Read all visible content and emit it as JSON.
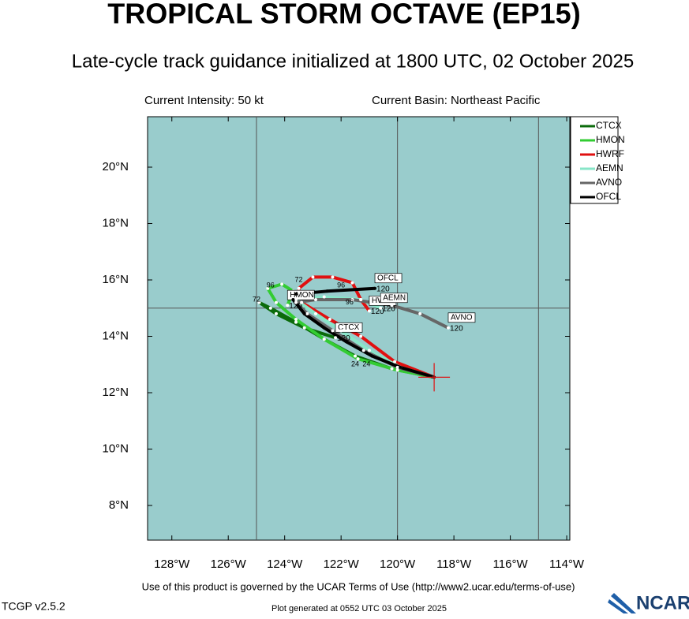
{
  "chart_data": {
    "type": "track",
    "title": "TROPICAL STORM OCTAVE (EP15)",
    "subtitle": "Late-cycle track guidance initialized at 1800 UTC, 02 October 2025",
    "left_note": "Current Intensity: 50 kt",
    "right_note": "Current Basin: Northeast Pacific",
    "footer": "Use of this product is governed by the UCAR Terms of Use (http://www2.ucar.edu/terms-of-use)",
    "version": "TCGP v2.5.2",
    "generated": "Plot generated at 0552 UTC   03 October 2025",
    "logo": "NCAR",
    "background": "#99cccc",
    "xlim": [
      -128.86,
      -113.89
    ],
    "ylim": [
      6.77,
      21.79
    ],
    "xticks": [
      {
        "value": -128,
        "label": "128°W"
      },
      {
        "value": -126,
        "label": "126°W"
      },
      {
        "value": -124,
        "label": "124°W"
      },
      {
        "value": -122,
        "label": "122°W"
      },
      {
        "value": -120,
        "label": "120°W"
      },
      {
        "value": -118,
        "label": "118°W"
      },
      {
        "value": -116,
        "label": "116°W"
      },
      {
        "value": -114,
        "label": "114°W"
      }
    ],
    "yticks": [
      {
        "value": 8,
        "label": "8°N"
      },
      {
        "value": 10,
        "label": "10°N"
      },
      {
        "value": 12,
        "label": "12°N"
      },
      {
        "value": 14,
        "label": "14°N"
      },
      {
        "value": 16,
        "label": "16°N"
      },
      {
        "value": 18,
        "label": "18°N"
      },
      {
        "value": 20,
        "label": "20°N"
      }
    ],
    "xgrid": [
      -125,
      -120,
      -115
    ],
    "ygrid": [
      15
    ],
    "series": [
      {
        "name": "CTCX",
        "color": "#0b6b0b",
        "end_label": "120",
        "x": [
          -118.7,
          -120.2,
          -121.5,
          -122.6,
          -123.6,
          -124.5,
          -124.9,
          -124.3,
          -123.3,
          -122.2
        ],
        "values": [
          12.55,
          12.85,
          13.3,
          13.9,
          14.5,
          15.0,
          15.2,
          14.8,
          14.3,
          13.95
        ]
      },
      {
        "name": "HMON",
        "color": "#33cc33",
        "end_label": "120",
        "x": [
          -118.7,
          -120.0,
          -121.4,
          -122.6,
          -123.6,
          -124.3,
          -124.6,
          -124.1,
          -123.7,
          -123.9
        ],
        "values": [
          12.55,
          12.8,
          13.2,
          13.9,
          14.6,
          15.2,
          15.7,
          15.85,
          15.6,
          15.1
        ]
      },
      {
        "name": "HWRF",
        "color": "#e01010",
        "end_label": "120",
        "x": [
          -118.7,
          -120.1,
          -121.3,
          -122.4,
          -123.4,
          -123.5,
          -123.0,
          -122.3,
          -121.6,
          -121.3,
          -121.0
        ],
        "values": [
          12.55,
          13.1,
          14.0,
          14.6,
          15.2,
          15.7,
          16.1,
          16.1,
          15.9,
          15.3,
          14.9
        ]
      },
      {
        "name": "AEMN",
        "color": "#88e6c8",
        "end_label": "120",
        "x": [
          -118.7,
          -119.9,
          -121.0,
          -122.0,
          -122.9,
          -123.6,
          -122.6,
          -121.3,
          -120.6
        ],
        "values": [
          12.55,
          12.9,
          13.5,
          14.2,
          14.8,
          15.3,
          15.4,
          15.3,
          15.0
        ]
      },
      {
        "name": "AVNO",
        "color": "#666666",
        "end_label": "120",
        "x": [
          -118.7,
          -120.0,
          -121.2,
          -122.3,
          -123.2,
          -123.6,
          -122.9,
          -121.6,
          -120.2,
          -119.2,
          -118.2
        ],
        "values": [
          12.55,
          12.9,
          13.5,
          14.2,
          14.8,
          15.2,
          15.3,
          15.3,
          15.1,
          14.8,
          14.3
        ]
      },
      {
        "name": "OFCL",
        "color": "#000000",
        "end_label": "120",
        "x": [
          -118.7,
          -119.9,
          -120.9,
          -121.8,
          -122.6,
          -123.3,
          -123.7,
          -123.6,
          -122.5,
          -120.8
        ],
        "values": [
          12.55,
          12.9,
          13.3,
          13.8,
          14.3,
          14.8,
          15.3,
          15.5,
          15.6,
          15.7
        ]
      }
    ],
    "annotations": [
      {
        "text": "72",
        "x": -125.0,
        "y": 15.3
      },
      {
        "text": "96",
        "x": -124.5,
        "y": 15.8
      },
      {
        "text": "72",
        "x": -123.5,
        "y": 16.0
      },
      {
        "text": "96",
        "x": -122.0,
        "y": 15.8
      },
      {
        "text": "96",
        "x": -121.7,
        "y": 15.2
      },
      {
        "text": "24",
        "x": -121.5,
        "y": 13.0
      },
      {
        "text": "24",
        "x": -121.1,
        "y": 13.0
      }
    ]
  }
}
